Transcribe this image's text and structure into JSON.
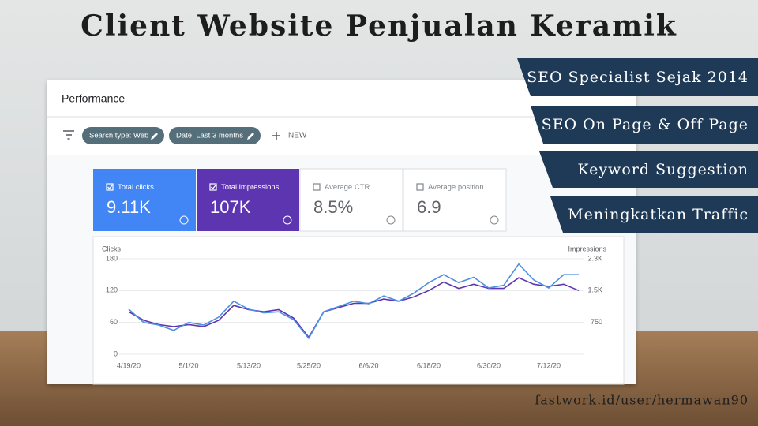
{
  "title": "Client Website Penjualan Keramik",
  "badges": [
    "SEO Specialist Sejak 2014",
    "SEO On Page & Off Page",
    "Keyword Suggestion",
    "Meningkatkan Traffic"
  ],
  "footer": "fastwork.id/user/hermawan90",
  "performance": {
    "heading": "Performance",
    "filters": [
      "Search type: Web",
      "Date: Last 3 months"
    ],
    "new_button": "NEW",
    "cards": [
      {
        "label": "Total clicks",
        "value": "9.11K",
        "selected": true,
        "color": "#4285f4"
      },
      {
        "label": "Total impressions",
        "value": "107K",
        "selected": true,
        "color": "#5e35b1"
      },
      {
        "label": "Average CTR",
        "value": "8.5%",
        "selected": false,
        "color": "#ffffff"
      },
      {
        "label": "Average position",
        "value": "6.9",
        "selected": false,
        "color": "#ffffff"
      }
    ]
  },
  "chart_data": {
    "type": "line",
    "categories": [
      "4/19/20",
      null,
      null,
      null,
      "5/1/20",
      null,
      null,
      null,
      "5/13/20",
      null,
      null,
      null,
      "5/25/20",
      null,
      null,
      null,
      "6/6/20",
      null,
      null,
      null,
      "6/18/20",
      null,
      null,
      null,
      "6/30/20",
      null,
      null,
      null,
      "7/12/20",
      null,
      null
    ],
    "series": [
      {
        "name": "Clicks",
        "color": "#4a90e2",
        "values": [
          85,
          60,
          55,
          45,
          60,
          55,
          70,
          100,
          85,
          78,
          80,
          65,
          30,
          80,
          90,
          100,
          95,
          110,
          100,
          115,
          135,
          150,
          135,
          145,
          125,
          130,
          170,
          140,
          125,
          150,
          150
        ]
      },
      {
        "name": "Impressions",
        "color": "#5e35b1",
        "axis": "y2",
        "values": [
          1000,
          800,
          700,
          650,
          700,
          650,
          800,
          1150,
          1050,
          1000,
          1050,
          850,
          400,
          1000,
          1100,
          1200,
          1200,
          1300,
          1250,
          1350,
          1500,
          1700,
          1550,
          1650,
          1550,
          1550,
          1800,
          1650,
          1600,
          1650,
          1500
        ]
      }
    ],
    "ylim": [
      0,
      180
    ],
    "yticks": [
      0,
      60,
      120,
      180
    ],
    "y2lim": [
      0,
      2250
    ],
    "y2ticks": [
      750,
      {
        "value": 1500,
        "label": "1.5K"
      },
      {
        "value": 2250,
        "label": "2.3K"
      }
    ],
    "grid": true
  }
}
